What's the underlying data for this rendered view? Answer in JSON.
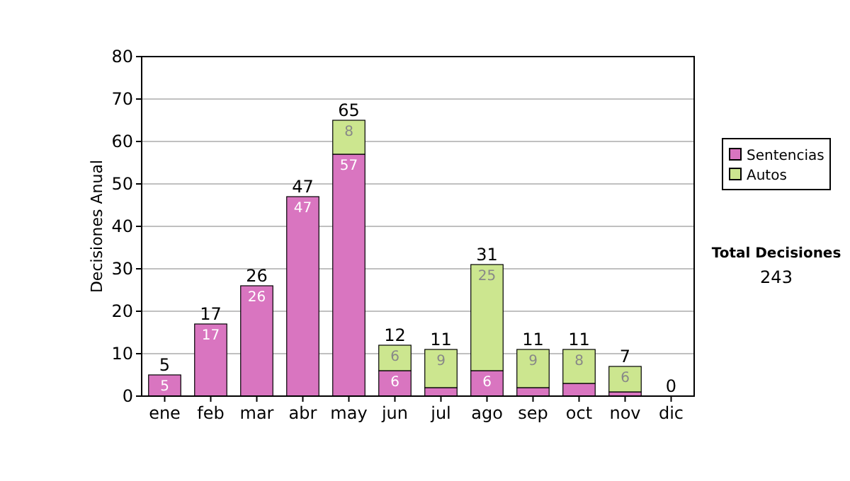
{
  "chart_data": {
    "type": "bar",
    "stacked": true,
    "ylabel": "Decisiones Anual",
    "categories": [
      "ene",
      "feb",
      "mar",
      "abr",
      "may",
      "jun",
      "jul",
      "ago",
      "sep",
      "oct",
      "nov",
      "dic"
    ],
    "series": [
      {
        "name": "Sentencias",
        "color": "#d975c0",
        "values": [
          5,
          17,
          26,
          47,
          57,
          6,
          2,
          6,
          2,
          3,
          1,
          0
        ],
        "value_labels": [
          "5",
          "17",
          "26",
          "47",
          "57",
          "6",
          null,
          "6",
          null,
          null,
          null,
          null
        ]
      },
      {
        "name": "Autos",
        "color": "#cce68f",
        "values": [
          0,
          0,
          0,
          0,
          8,
          6,
          9,
          25,
          9,
          8,
          6,
          0
        ],
        "value_labels": [
          null,
          null,
          null,
          null,
          "8",
          "6",
          "9",
          "25",
          "9",
          "8",
          "6",
          null
        ]
      }
    ],
    "totals": [
      "5",
      "17",
      "26",
      "47",
      "65",
      "12",
      "11",
      "31",
      "11",
      "11",
      "7",
      "0"
    ],
    "ylim": [
      0,
      80
    ],
    "yticks": [
      0,
      10,
      20,
      30,
      40,
      50,
      60,
      70,
      80
    ],
    "grid": "y",
    "legend": "right",
    "annotations": [
      "Total Decisiones",
      "243"
    ]
  }
}
